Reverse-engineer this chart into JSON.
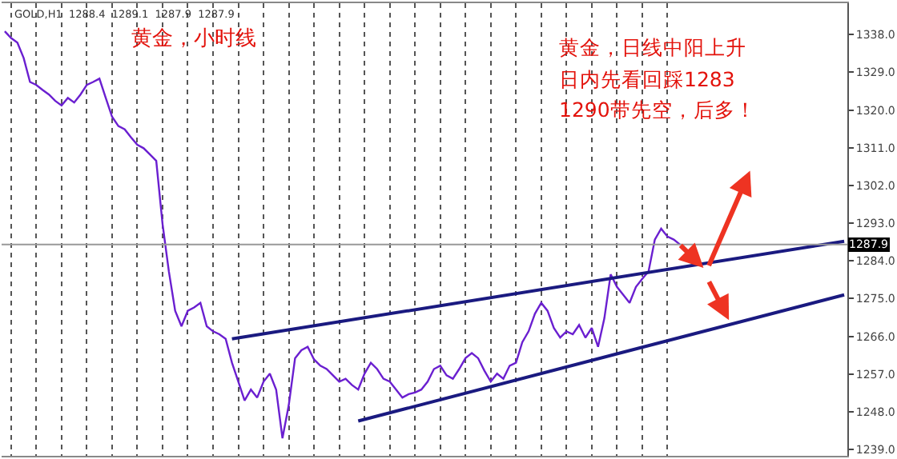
{
  "chart_data": {
    "type": "line",
    "title": "黄金，小时线",
    "annotations": [
      "GOLD,H1  1288.4  1289.1  1287.9  1287.9",
      "黄金，日线中阳上升",
      "日内先看回踩1283",
      "1290带先空，后多！"
    ],
    "categories": [
      null,
      null,
      null,
      null,
      null,
      null,
      null,
      null,
      null,
      null,
      null,
      null,
      null,
      null,
      null,
      null,
      null,
      null,
      null,
      null,
      null,
      null,
      null,
      null,
      null,
      null,
      null,
      null,
      null,
      null,
      null,
      null,
      null,
      null,
      null,
      null,
      null,
      null,
      null,
      null,
      null,
      null,
      null,
      null,
      null,
      null,
      null,
      null,
      null,
      null,
      null,
      null,
      null,
      null,
      null,
      null,
      null,
      null,
      null,
      null,
      null,
      null,
      null,
      null,
      null,
      null,
      null,
      null,
      null,
      null,
      null,
      null,
      null,
      null,
      null,
      null,
      null,
      null,
      null,
      null,
      null,
      null,
      null,
      null,
      null,
      null,
      null,
      null,
      null,
      null,
      null,
      null,
      null,
      null,
      null,
      null,
      null,
      null,
      null,
      null,
      null,
      null,
      null,
      null,
      null,
      null,
      null,
      null,
      null,
      null,
      null,
      null,
      null,
      null,
      null,
      null,
      null,
      null,
      null,
      null,
      null,
      null,
      null,
      null,
      null,
      null,
      null,
      null,
      null,
      null,
      null,
      null,
      null,
      null
    ],
    "series": [
      {
        "color": "#6a1fd0",
        "values": [
          1338.8,
          1337.2,
          1336.1,
          1332.4,
          1326.7,
          1326.0,
          1324.8,
          1323.7,
          1322.2,
          1321.1,
          1322.9,
          1321.8,
          1323.7,
          1326.0,
          1326.7,
          1327.5,
          1322.9,
          1318.4,
          1316.2,
          1315.4,
          1313.5,
          1311.7,
          1310.9,
          1309.4,
          1307.9,
          1292.8,
          1281.5,
          1272.1,
          1268.4,
          1272.1,
          1272.9,
          1274.0,
          1268.4,
          1267.2,
          1266.5,
          1265.4,
          1259.7,
          1255.2,
          1250.7,
          1253.3,
          1251.4,
          1255.2,
          1257.1,
          1253.3,
          1241.7,
          1249.6,
          1260.8,
          1262.7,
          1263.5,
          1260.5,
          1259.0,
          1258.2,
          1256.7,
          1255.2,
          1255.9,
          1254.4,
          1253.3,
          1257.1,
          1259.7,
          1258.2,
          1255.9,
          1255.2,
          1253.3,
          1251.4,
          1252.2,
          1252.6,
          1253.3,
          1255.2,
          1258.2,
          1259.0,
          1256.7,
          1255.9,
          1258.2,
          1260.8,
          1262.0,
          1260.8,
          1257.8,
          1255.2,
          1257.1,
          1255.9,
          1259.0,
          1259.7,
          1264.6,
          1267.2,
          1271.4,
          1274.0,
          1272.1,
          1268.0,
          1265.7,
          1267.2,
          1266.5,
          1268.7,
          1265.7,
          1268.0,
          1263.5,
          1270.3,
          1280.8,
          1277.8,
          1275.9,
          1274.0,
          1277.8,
          1279.7,
          1281.5,
          1289.1,
          1291.7,
          1289.8,
          1289.1,
          1287.9,
          null,
          null,
          null,
          null,
          null,
          null,
          null,
          null,
          null,
          null,
          null,
          null,
          null,
          null,
          null,
          null,
          null,
          null,
          null,
          null,
          null,
          null,
          null,
          null,
          null,
          null
        ]
      },
      {
        "color": "#1a1a80",
        "values": [
          null,
          null,
          null,
          null,
          null,
          null,
          null,
          null,
          null,
          null,
          null,
          null,
          null,
          null,
          null,
          null,
          null,
          null,
          null,
          null,
          null,
          null,
          null,
          null,
          null,
          null,
          null,
          null,
          null,
          null,
          null,
          null,
          null,
          null,
          null,
          null,
          1265.4,
          null,
          null,
          null,
          null,
          null,
          null,
          null,
          null,
          null,
          null,
          null,
          null,
          null,
          null,
          null,
          null,
          null,
          null,
          null,
          null,
          null,
          null,
          null,
          null,
          null,
          null,
          null,
          null,
          null,
          null,
          null,
          null,
          null,
          null,
          null,
          null,
          null,
          null,
          null,
          null,
          null,
          null,
          null,
          null,
          null,
          null,
          null,
          null,
          null,
          null,
          null,
          null,
          null,
          null,
          null,
          null,
          null,
          null,
          null,
          null,
          null,
          null,
          null,
          null,
          null,
          null,
          null,
          null,
          null,
          null,
          null,
          null,
          null,
          null,
          null,
          null,
          null,
          null,
          null,
          null,
          null,
          null,
          null,
          null,
          null,
          null,
          null,
          null,
          null,
          null,
          null,
          null,
          null,
          null,
          null,
          null,
          1288.7
        ]
      },
      {
        "color": "#1a1a80",
        "values": [
          null,
          null,
          null,
          null,
          null,
          null,
          null,
          null,
          null,
          null,
          null,
          null,
          null,
          null,
          null,
          null,
          null,
          null,
          null,
          null,
          null,
          null,
          null,
          null,
          null,
          null,
          null,
          null,
          null,
          null,
          null,
          null,
          null,
          null,
          null,
          null,
          null,
          null,
          null,
          null,
          null,
          null,
          null,
          null,
          null,
          null,
          null,
          null,
          null,
          null,
          null,
          null,
          null,
          null,
          null,
          null,
          1245.8,
          null,
          null,
          null,
          null,
          null,
          null,
          null,
          null,
          null,
          null,
          null,
          null,
          null,
          null,
          null,
          null,
          null,
          null,
          null,
          null,
          null,
          null,
          null,
          null,
          null,
          null,
          null,
          null,
          null,
          null,
          null,
          null,
          null,
          null,
          null,
          null,
          null,
          null,
          null,
          null,
          null,
          null,
          null,
          null,
          null,
          null,
          null,
          null,
          null,
          null,
          null,
          null,
          null,
          null,
          null,
          null,
          null,
          null,
          null,
          null,
          null,
          null,
          null,
          null,
          null,
          null,
          null,
          null,
          null,
          null,
          null,
          null,
          null,
          null,
          null,
          null,
          1275.9
        ]
      }
    ],
    "ylim": [
      1237.5,
      1345.5
    ],
    "yticks": [
      {
        "value": 1239,
        "label": "1239.0"
      },
      {
        "value": 1248,
        "label": "1248.0"
      },
      {
        "value": 1257,
        "label": "1257.0"
      },
      {
        "value": 1266,
        "label": "1266.0"
      },
      {
        "value": 1275,
        "label": "1275.0"
      },
      {
        "value": 1284,
        "label": "1284.0"
      },
      {
        "value": 1293,
        "label": "1293.0"
      },
      {
        "value": 1302,
        "label": "1302.0"
      },
      {
        "value": 1311,
        "label": "1311.0"
      },
      {
        "value": 1320,
        "label": "1320.0"
      },
      {
        "value": 1329,
        "label": "1329.0"
      },
      {
        "value": 1338,
        "label": "1338.0"
      }
    ],
    "ref_lines": [
      {
        "axis": "y",
        "value": 1287.9,
        "label": "1287.9",
        "color": "#999999"
      }
    ],
    "grid": "x",
    "tick_labels": "y",
    "marker": "none",
    "line_style": "solid"
  }
}
